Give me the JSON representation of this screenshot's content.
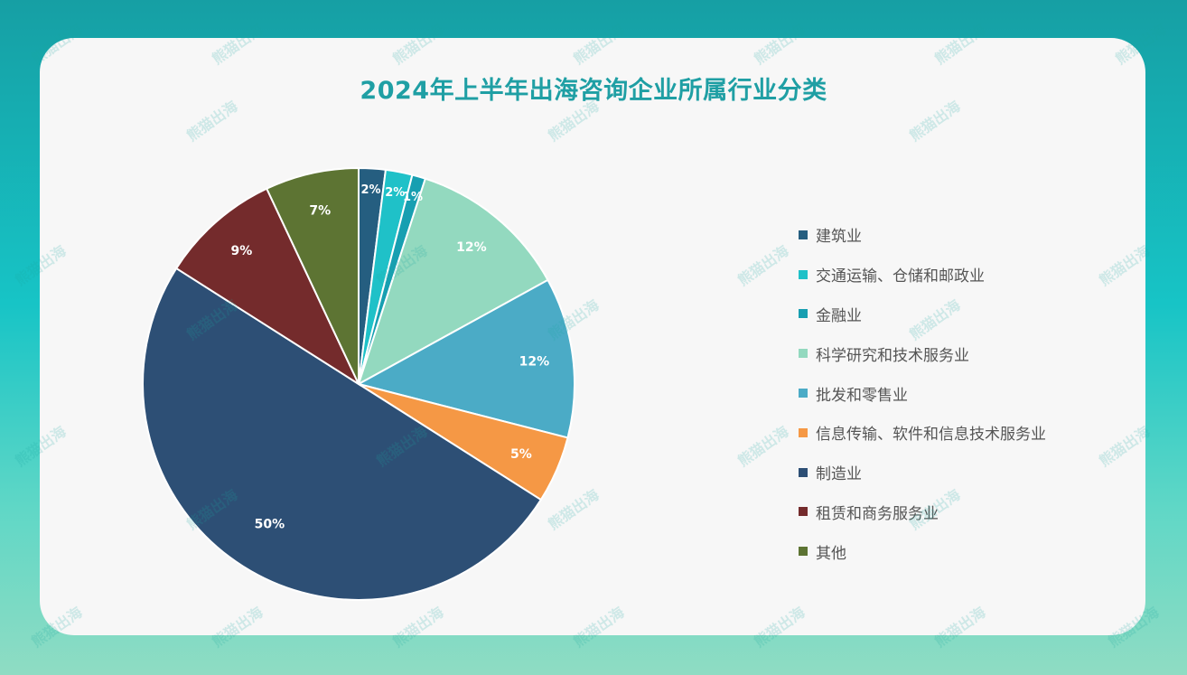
{
  "chart_data": {
    "type": "pie",
    "title": "2024年上半年出海咨询企业所属行业分类",
    "categories": [
      "建筑业",
      "交通运输、仓储和邮政业",
      "金融业",
      "科学研究和技术服务业",
      "批发和零售业",
      "信息传输、软件和信息技术服务业",
      "制造业",
      "租赁和商务服务业",
      "其他"
    ],
    "values": [
      2,
      2,
      1,
      12,
      12,
      5,
      50,
      9,
      7
    ],
    "value_labels": [
      "2%",
      "2%",
      "1%",
      "12%",
      "12%",
      "5%",
      "50%",
      "9%",
      "7%"
    ],
    "colors": [
      "#255e80",
      "#1fc1c8",
      "#179fb1",
      "#93d9bf",
      "#4babc6",
      "#f59845",
      "#2d4f75",
      "#742b2c",
      "#5d7433"
    ],
    "legend_position": "right"
  },
  "watermark": {
    "text": "熊猫出海"
  }
}
